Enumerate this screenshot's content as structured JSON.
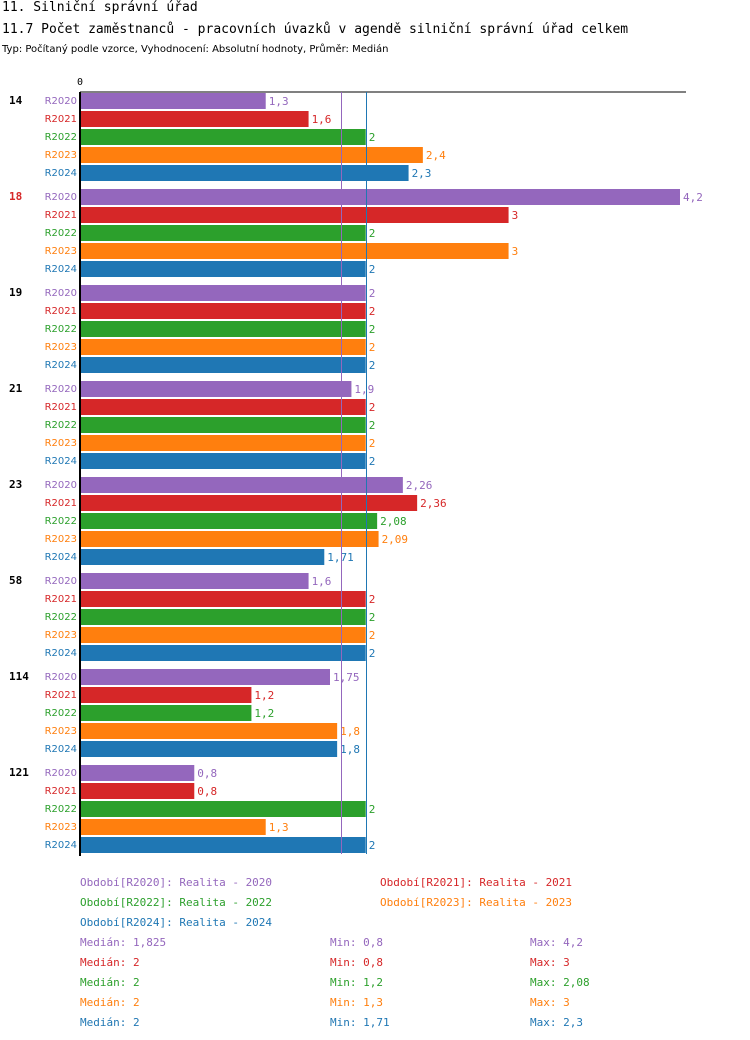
{
  "header": {
    "title": "11. Silniční správní úřad",
    "subtitle": "11.7 Počet zaměstnanců - pracovních úvazků v agendě silniční správní úřad celkem",
    "type_line": "Typ: Počítaný podle vzorce, Vyhodnocení: Absolutní hodnoty, Průměr: Medián"
  },
  "colors": {
    "R2020": "#9467bd",
    "R2021": "#d62728",
    "R2022": "#2ca02c",
    "R2023": "#ff7f0e",
    "R2024": "#1f77b4",
    "highlight_group": "#d62728"
  },
  "chart_data": {
    "type": "bar",
    "orientation": "horizontal",
    "title": "11.7 Počet zaměstnanců - pracovních úvazků v agendě silniční správní úřad celkem",
    "x_axis_zero_label": "0",
    "xlim": [
      0,
      4.4
    ],
    "series_names": [
      "R2020",
      "R2021",
      "R2022",
      "R2023",
      "R2024"
    ],
    "groups": [
      {
        "label": "14",
        "highlight": false,
        "values": [
          1.3,
          1.6,
          2,
          2.4,
          2.3
        ],
        "labels": [
          "1,3",
          "1,6",
          "2",
          "2,4",
          "2,3"
        ]
      },
      {
        "label": "18",
        "highlight": true,
        "values": [
          4.2,
          3,
          2,
          3,
          2
        ],
        "labels": [
          "4,2",
          "3",
          "2",
          "3",
          "2"
        ]
      },
      {
        "label": "19",
        "highlight": false,
        "values": [
          2,
          2,
          2,
          2,
          2
        ],
        "labels": [
          "2",
          "2",
          "2",
          "2",
          "2"
        ]
      },
      {
        "label": "21",
        "highlight": false,
        "values": [
          1.9,
          2,
          2,
          2,
          2
        ],
        "labels": [
          "1,9",
          "2",
          "2",
          "2",
          "2"
        ]
      },
      {
        "label": "23",
        "highlight": false,
        "values": [
          2.26,
          2.36,
          2.08,
          2.09,
          1.71
        ],
        "labels": [
          "2,26",
          "2,36",
          "2,08",
          "2,09",
          "1,71"
        ]
      },
      {
        "label": "58",
        "highlight": false,
        "values": [
          1.6,
          2,
          2,
          2,
          2
        ],
        "labels": [
          "1,6",
          "2",
          "2",
          "2",
          "2"
        ]
      },
      {
        "label": "114",
        "highlight": false,
        "values": [
          1.75,
          1.2,
          1.2,
          1.8,
          1.8
        ],
        "labels": [
          "1,75",
          "1,2",
          "1,2",
          "1,8",
          "1,8"
        ]
      },
      {
        "label": "121",
        "highlight": false,
        "values": [
          0.8,
          0.8,
          2,
          1.3,
          2
        ],
        "labels": [
          "0,8",
          "0,8",
          "2",
          "1,3",
          "2"
        ]
      }
    ],
    "reference_lines": [
      {
        "series": "R2020",
        "value": 1.825
      },
      {
        "series": "R2024",
        "value": 2
      }
    ]
  },
  "legend": {
    "periods": [
      {
        "series": "R2020",
        "text": "Období[R2020]: Realita - 2020"
      },
      {
        "series": "R2021",
        "text": "Období[R2021]: Realita - 2021"
      },
      {
        "series": "R2022",
        "text": "Období[R2022]: Realita - 2022"
      },
      {
        "series": "R2023",
        "text": "Období[R2023]: Realita - 2023"
      },
      {
        "series": "R2024",
        "text": "Období[R2024]: Realita - 2024"
      }
    ],
    "stats": [
      {
        "series": "R2020",
        "median": "Medián: 1,825",
        "min": "Min: 0,8",
        "max": "Max: 4,2"
      },
      {
        "series": "R2021",
        "median": "Medián: 2",
        "min": "Min: 0,8",
        "max": "Max: 3"
      },
      {
        "series": "R2022",
        "median": "Medián: 2",
        "min": "Min: 1,2",
        "max": "Max: 2,08"
      },
      {
        "series": "R2023",
        "median": "Medián: 2",
        "min": "Min: 1,3",
        "max": "Max: 3"
      },
      {
        "series": "R2024",
        "median": "Medián: 2",
        "min": "Min: 1,71",
        "max": "Max: 2,3"
      }
    ]
  }
}
